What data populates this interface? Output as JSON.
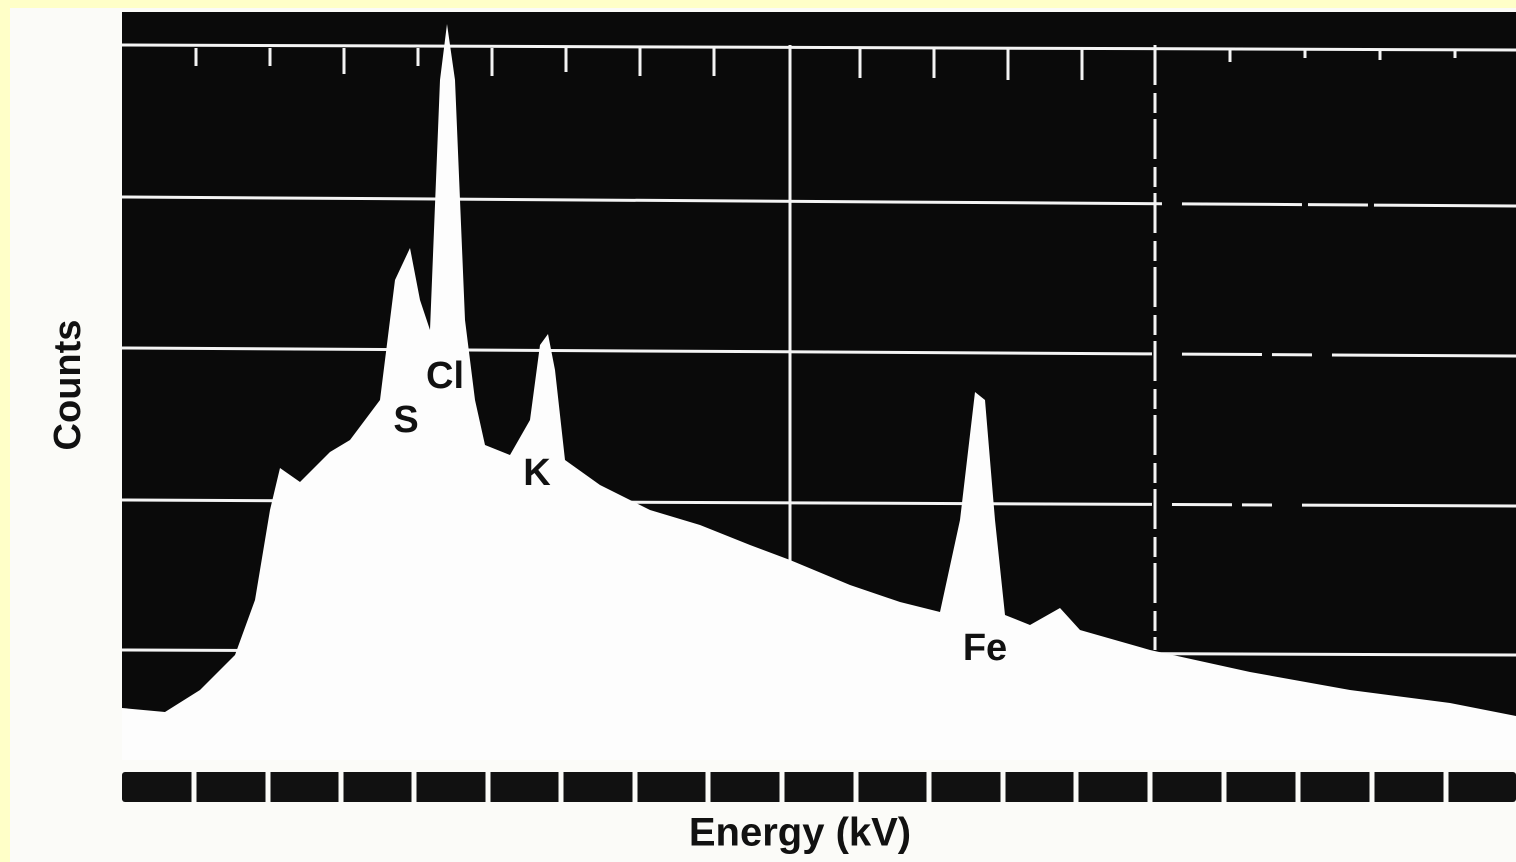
{
  "figure": {
    "y_label": "Counts",
    "x_label": "Energy (kV)",
    "peaks": [
      "S",
      "Cl",
      "K",
      "Fe"
    ]
  }
}
